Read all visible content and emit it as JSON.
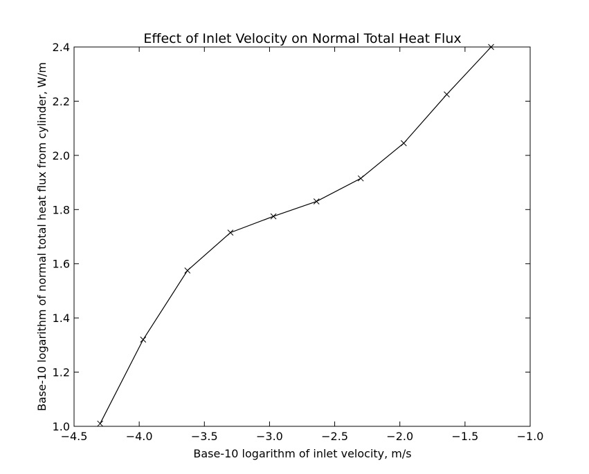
{
  "chart_data": {
    "type": "line",
    "title": "Effect of Inlet Velocity on Normal Total Heat Flux",
    "xlabel": "Base-10 logarithm of inlet velocity, m/s",
    "ylabel": "Base-10 logarithm of normal total heat flux from cylinder, W/m",
    "xlim": [
      -4.5,
      -1.0
    ],
    "ylim": [
      1.0,
      2.4
    ],
    "x_ticks": [
      -4.5,
      -4.0,
      -3.5,
      -3.0,
      -2.5,
      -2.0,
      -1.5,
      -1.0
    ],
    "x_tick_labels": [
      "−4.5",
      "−4.0",
      "−3.5",
      "−3.0",
      "−2.5",
      "−2.0",
      "−1.5",
      "−1.0"
    ],
    "y_ticks": [
      1.0,
      1.2,
      1.4,
      1.6,
      1.8,
      2.0,
      2.2,
      2.4
    ],
    "y_tick_labels": [
      "1.0",
      "1.2",
      "1.4",
      "1.6",
      "1.8",
      "2.0",
      "2.2",
      "2.4"
    ],
    "grid": false,
    "marker": "x",
    "series": [
      {
        "color": "#000000",
        "x": [
          -4.3,
          -3.97,
          -3.63,
          -3.3,
          -2.97,
          -2.64,
          -2.3,
          -1.97,
          -1.64,
          -1.3
        ],
        "y": [
          1.01,
          1.32,
          1.575,
          1.715,
          1.775,
          1.83,
          1.915,
          2.045,
          2.225,
          2.4
        ]
      }
    ]
  }
}
